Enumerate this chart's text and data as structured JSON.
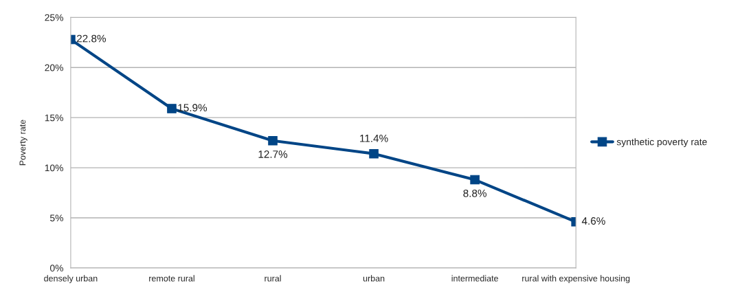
{
  "chart_data": {
    "type": "line",
    "ylabel": "Poverty rate",
    "categories": [
      "densely urban",
      "remote rural",
      "rural",
      "urban",
      "intermediate",
      "rural with expensive housing"
    ],
    "series": [
      {
        "name": "synthetic poverty rate",
        "color": "#004586",
        "values": [
          22.8,
          15.9,
          12.7,
          11.4,
          8.8,
          4.6
        ],
        "value_labels": [
          "22.8%",
          "15.9%",
          "12.7%",
          "11.4%",
          "8.8%",
          "4.6%"
        ]
      }
    ],
    "ylim": [
      0,
      25
    ],
    "yticks": [
      {
        "value": 0,
        "label": "0%"
      },
      {
        "value": 5,
        "label": "5%"
      },
      {
        "value": 10,
        "label": "10%"
      },
      {
        "value": 15,
        "label": "15%"
      },
      {
        "value": 20,
        "label": "20%"
      },
      {
        "value": 25,
        "label": "25%"
      }
    ],
    "grid": "y",
    "legend": "right",
    "marker": "square",
    "line_style": "solid"
  }
}
